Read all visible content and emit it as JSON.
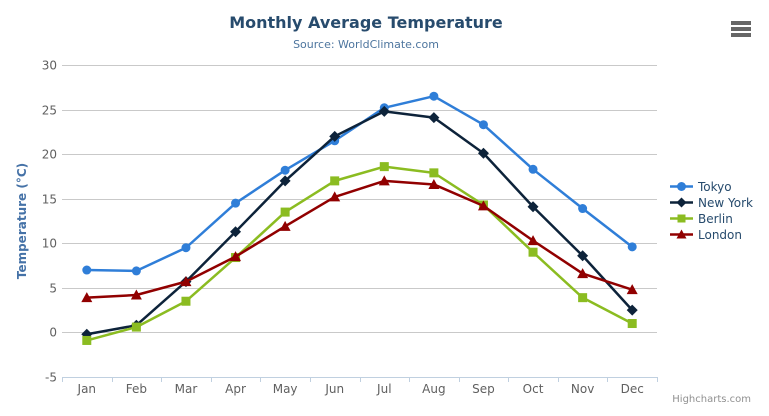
{
  "header": {
    "title": "Monthly Average Temperature",
    "subtitle": "Source: WorldClimate.com"
  },
  "credit": {
    "label": "Highcharts.com"
  },
  "colors": {
    "title": "#274b6d",
    "subtitle": "#4d759e",
    "axis_title": "#4572a7",
    "tick_label": "#606060",
    "grid_line": "#c9c9c9",
    "axis_line": "#c0d0e0",
    "legend_text": "#274b6d",
    "credit_text": "#909090",
    "menu_icon": "#666666"
  },
  "chart_data": {
    "type": "line",
    "title": "Monthly Average Temperature",
    "subtitle": "Source: WorldClimate.com",
    "categories": [
      "Jan",
      "Feb",
      "Mar",
      "Apr",
      "May",
      "Jun",
      "Jul",
      "Aug",
      "Sep",
      "Oct",
      "Nov",
      "Dec"
    ],
    "series": [
      {
        "name": "Tokyo",
        "color": "#2f7ed8",
        "marker": "circle",
        "values": [
          7.0,
          6.9,
          9.5,
          14.5,
          18.2,
          21.5,
          25.2,
          26.5,
          23.3,
          18.3,
          13.9,
          9.6
        ]
      },
      {
        "name": "New York",
        "color": "#0d233a",
        "marker": "diamond",
        "values": [
          -0.2,
          0.8,
          5.7,
          11.3,
          17.0,
          22.0,
          24.8,
          24.1,
          20.1,
          14.1,
          8.6,
          2.5
        ]
      },
      {
        "name": "Berlin",
        "color": "#8bbc21",
        "marker": "square",
        "values": [
          -0.9,
          0.6,
          3.5,
          8.4,
          13.5,
          17.0,
          18.6,
          17.9,
          14.3,
          9.0,
          3.9,
          1.0
        ]
      },
      {
        "name": "London",
        "color": "#910000",
        "marker": "triangle",
        "values": [
          3.9,
          4.2,
          5.7,
          8.5,
          11.9,
          15.2,
          17.0,
          16.6,
          14.2,
          10.3,
          6.6,
          4.8
        ]
      }
    ],
    "xlabel": "",
    "ylabel": "Temperature (°C)",
    "ylim": [
      -5,
      30
    ],
    "ytick_step": 5,
    "grid": true,
    "legend_position": "right"
  }
}
